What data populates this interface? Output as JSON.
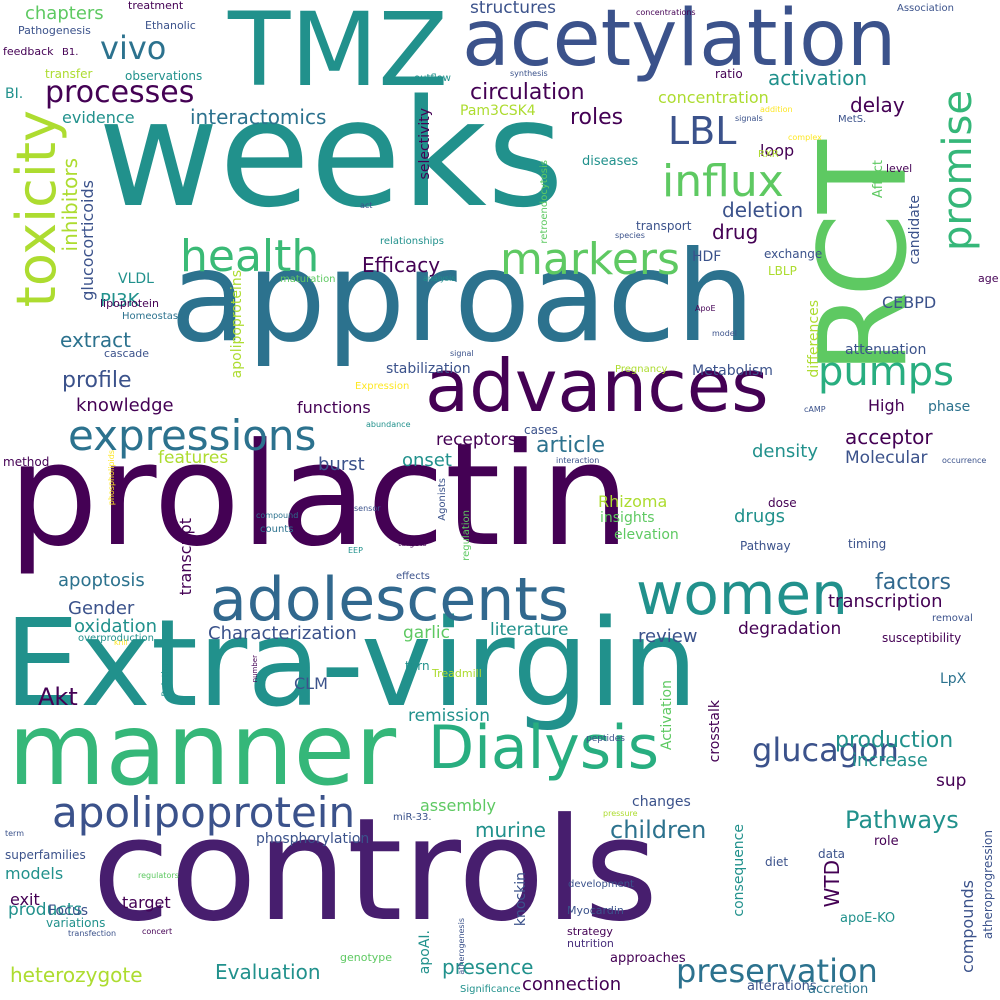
{
  "palette": [
    "#440154",
    "#472d7b",
    "#3b528b",
    "#2c728e",
    "#21918c",
    "#28ae80",
    "#5ec962",
    "#addc30",
    "#fde725"
  ],
  "words": [
    "prolactin",
    "controls",
    "Extra-virgin",
    "approach",
    "weeks",
    "RCT",
    "TMZ",
    "acetylation",
    "manner",
    "advances",
    "Dialysis",
    "adolescents",
    "women",
    "toxicity",
    "expressions",
    "apolipoprotein",
    "promise",
    "influx",
    "health",
    "markers",
    "pumps",
    "vivo",
    "processes",
    "LBL",
    "glucagon",
    "preservation",
    "production",
    "Pathways",
    "children",
    "Akt",
    "circulation",
    "roles",
    "Efficacy",
    "deletion",
    "drug",
    "delay",
    "factors",
    "transcription",
    "acceptor",
    "Molecular",
    "density",
    "article",
    "onset",
    "receptors",
    "burst",
    "features",
    "knowledge",
    "profile",
    "extract",
    "PI3K",
    "inhibitors",
    "glucocorticoids",
    "apoptosis",
    "transcript",
    "Gender",
    "oxidation",
    "Characterization",
    "garlic",
    "literature",
    "review",
    "degradation",
    "remission",
    "Activation",
    "crosstalk",
    "increase",
    "sup",
    "murine",
    "assembly",
    "changes",
    "consequence",
    "WTD",
    "compounds",
    "knockin",
    "presence",
    "connection",
    "Evaluation",
    "heterozygote",
    "products",
    "exit",
    "Focus",
    "models",
    "superfamilies",
    "target",
    "phosphorylation",
    "apoAI.",
    "Myocardin",
    "strategy",
    "nutrition",
    "approaches",
    "alterations",
    "accretion",
    "atheroprogression",
    "apoE-KO",
    "diet",
    "data",
    "role",
    "development",
    "chapters",
    "evidence",
    "interactomics",
    "structures",
    "activation",
    "concentration",
    "selectivity",
    "Pam3CSK4",
    "ratio",
    "loop",
    "candidate",
    "differences",
    "Affect",
    "High",
    "phase",
    "attenuation",
    "CEBPD",
    "Metabolism",
    "stabilization",
    "functions",
    "cases",
    "Rhizoma",
    "insights",
    "elevation",
    "drugs",
    "Pathway",
    "timing",
    "dose",
    "HDF",
    "LBLP",
    "exchange",
    "transport",
    "diseases",
    "retroendocytosis",
    "VLDL",
    "lipoprotein",
    "cascade",
    "Homeostasis",
    "BI.",
    "transfer",
    "observations",
    "feedback",
    "B1.",
    "Ethanolic",
    "treatment",
    "Pathogenesis",
    "outflow",
    "synthesis",
    "Association",
    "concentrations",
    "addition",
    "signals",
    "complex",
    "MetS.",
    "RXR",
    "level",
    "age",
    "species",
    "relationships",
    "analysis",
    "maturation",
    "ApoE",
    "model",
    "apolipoproteins",
    "signal",
    "Pregnancy",
    "cAMP",
    "Expression",
    "abundance",
    "interaction",
    "method",
    "phospholipids",
    "Agonists",
    "regulation",
    "compound",
    "sensor",
    "counts",
    "targets",
    "EEP",
    "effects",
    "occurrence",
    "susceptibility",
    "LpX",
    "removal",
    "overproduction",
    "turn",
    "Treadmill",
    "CLM",
    "Relation",
    "number",
    "peptides",
    "Krill",
    "miR-33.",
    "pressure",
    "term",
    "regulators",
    "variations",
    "concert",
    "transfection",
    "genotype",
    "atherogenesis",
    "Significance",
    "act",
    "act"
  ]
}
